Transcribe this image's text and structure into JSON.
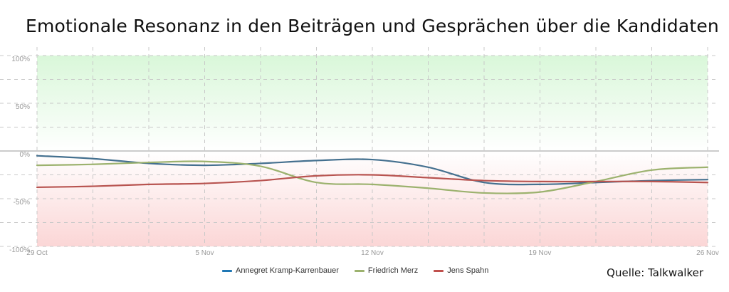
{
  "title": "Emotionale Resonanz in den Beiträgen und Gesprächen über die Kandidaten",
  "source": "Quelle: Talkwalker",
  "colors": {
    "positive_band": "#d9f7d9",
    "negative_band": "#fbd6d6",
    "grid": "#c8c8c8",
    "zero_line": "#999999"
  },
  "chart_data": {
    "type": "line",
    "x": [
      "29 Oct",
      "1 Nov",
      "3 Nov",
      "5 Nov",
      "7 Nov",
      "10 Nov",
      "12 Nov",
      "14 Nov",
      "17 Nov",
      "19 Nov",
      "21 Nov",
      "24 Nov",
      "26 Nov"
    ],
    "x_ticks": [
      "29 Oct",
      "5 Nov",
      "12 Nov",
      "19 Nov",
      "26 Nov"
    ],
    "y_ticks": [
      "100%",
      "50%",
      "0%",
      "-50%",
      "-100%"
    ],
    "ylim": [
      -100,
      100
    ],
    "grid": true,
    "legend_position": "bottom",
    "series": [
      {
        "name": "Annegret Kramp-Karrenbauer",
        "color": "#44708f",
        "legend_color": "#1f77b4",
        "values": [
          -5,
          -8,
          -13,
          -15,
          -13,
          -10,
          -9,
          -17,
          -33,
          -35,
          -33,
          -31,
          -30
        ]
      },
      {
        "name": "Friedrich Merz",
        "color": "#9cb26e",
        "legend_color": "#9cb26e",
        "values": [
          -15,
          -14,
          -12,
          -11,
          -16,
          -33,
          -35,
          -39,
          -44,
          -43,
          -32,
          -20,
          -17
        ]
      },
      {
        "name": "Jens Spahn",
        "color": "#b85450",
        "legend_color": "#c0504d",
        "values": [
          -38,
          -37,
          -35,
          -34,
          -31,
          -26,
          -25,
          -28,
          -31,
          -32,
          -32,
          -32,
          -33
        ]
      }
    ]
  }
}
